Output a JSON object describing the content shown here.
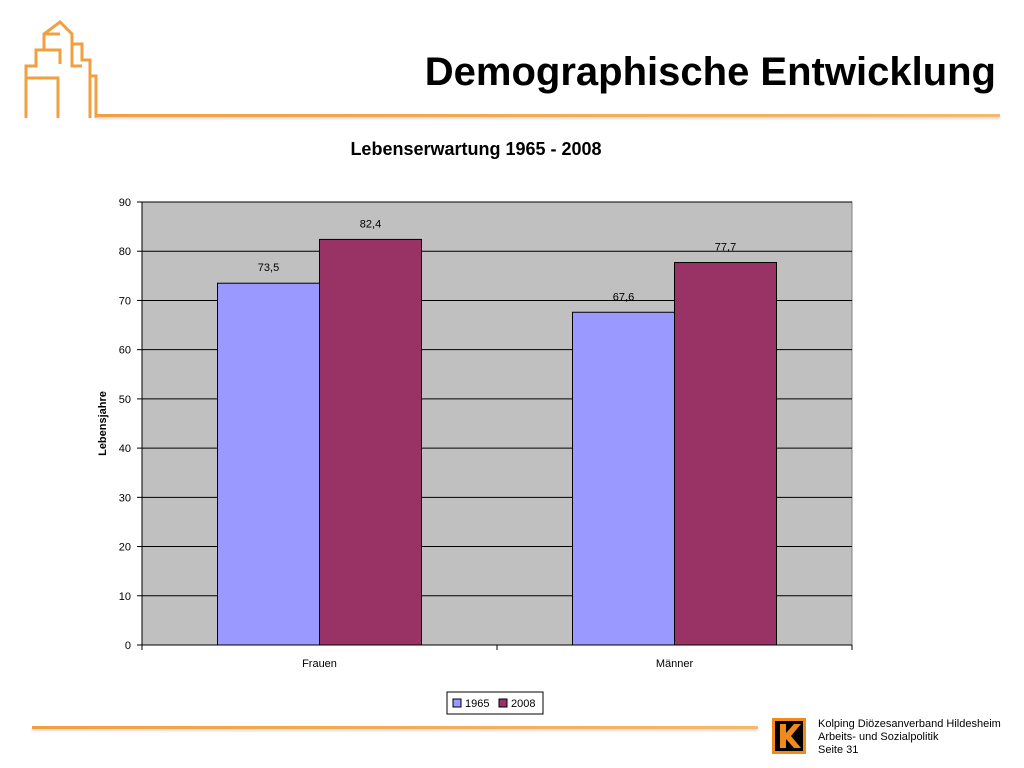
{
  "slide": {
    "title": "Demographische Entwicklung",
    "accent_color": "#f0a040",
    "logo_icon": "house-outline-icon"
  },
  "footer": {
    "line1": "Kolping Diözesanverband Hildesheim",
    "line2": "Arbeits- und Sozialpolitik",
    "line3": "Seite 31",
    "logo_icon": "kolping-k-logo"
  },
  "chart_data": {
    "type": "bar",
    "title": "Lebenserwartung 1965 - 2008",
    "xlabel": "",
    "ylabel": "Lebensjahre",
    "categories": [
      "Frauen",
      "Männer"
    ],
    "series": [
      {
        "name": "1965",
        "values": [
          73.5,
          67.6
        ],
        "labels": [
          "73,5",
          "67,6"
        ],
        "color": "#9999ff"
      },
      {
        "name": "2008",
        "values": [
          82.4,
          77.7
        ],
        "labels": [
          "82,4",
          "77,7"
        ],
        "color": "#993366"
      }
    ],
    "ylim": [
      0,
      90
    ],
    "yticks": [
      0,
      10,
      20,
      30,
      40,
      50,
      60,
      70,
      80,
      90
    ],
    "grid": true,
    "plot_background": "#c0c0c0",
    "legend_position": "bottom"
  }
}
